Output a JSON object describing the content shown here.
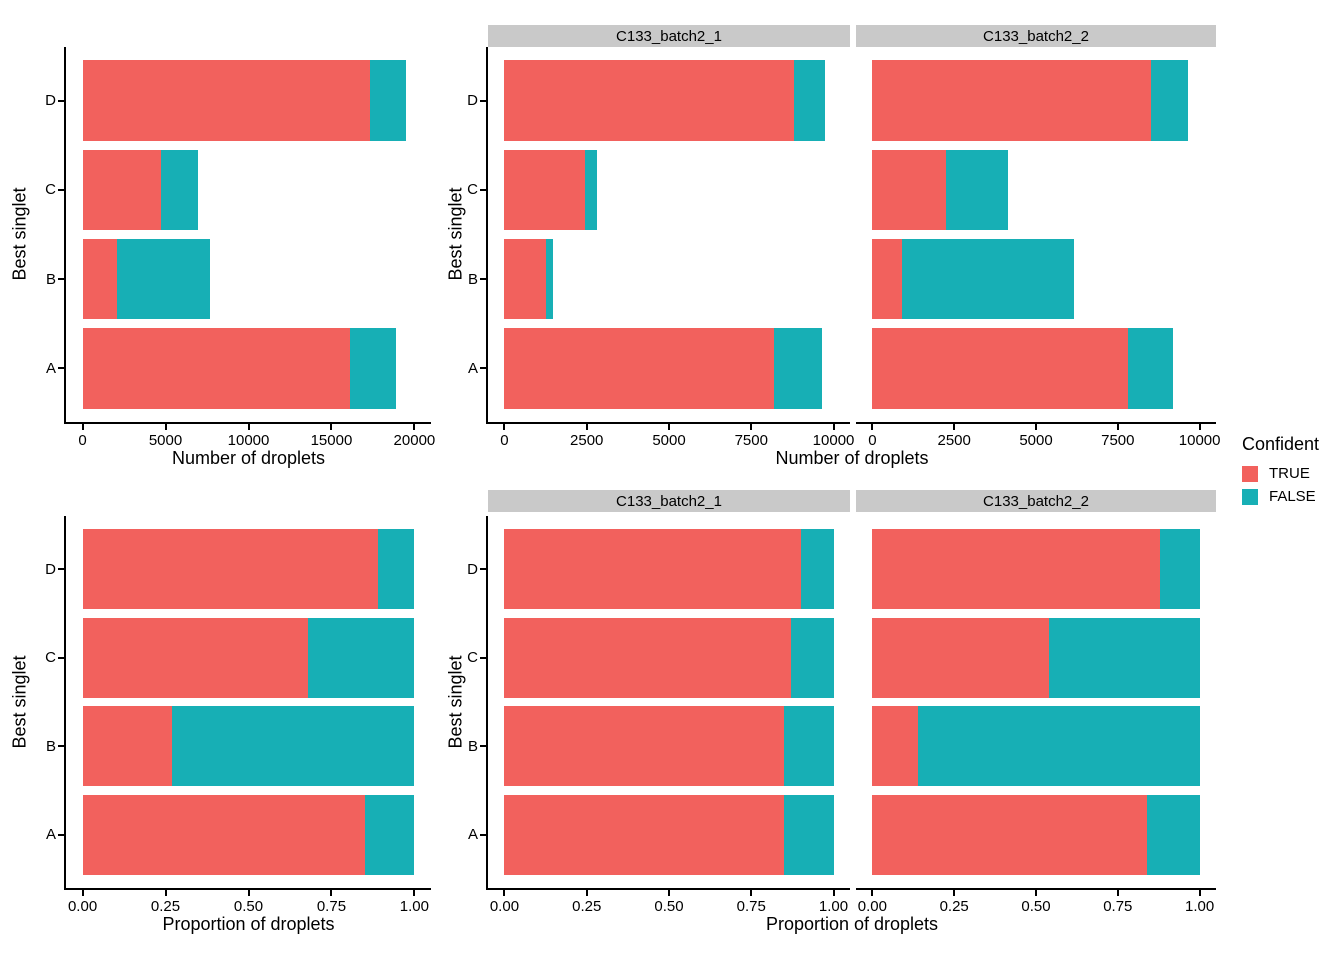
{
  "figure": {
    "background": "#FFFFFF",
    "axis_color": "#000000",
    "strip_bg": "#C9C9C9",
    "ylabel": "Best singlet",
    "xlabel_counts": "Number of droplets",
    "xlabel_props": "Proportion of droplets"
  },
  "facets": [
    "C133_batch2_1",
    "C133_batch2_2"
  ],
  "legend": {
    "title": "Confident",
    "entries": [
      {
        "label": "TRUE",
        "color": "#F2615D"
      },
      {
        "label": "FALSE",
        "color": "#17AFB5"
      }
    ]
  },
  "chart_data": [
    {
      "id": "counts-all",
      "type": "bar",
      "orientation": "horizontal",
      "stacked": true,
      "facet_label": null,
      "categories": [
        "D",
        "C",
        "B",
        "A"
      ],
      "series": [
        {
          "name": "TRUE",
          "values": [
            17300,
            4700,
            2100,
            16100
          ]
        },
        {
          "name": "FALSE",
          "values": [
            2200,
            2250,
            5600,
            2800
          ]
        }
      ],
      "xlabel": "Number of droplets",
      "ylabel": "Best singlet",
      "xticks": [
        0,
        5000,
        10000,
        15000,
        20000
      ],
      "xtick_format": "int",
      "xlim": [
        0,
        20000
      ],
      "grid": false
    },
    {
      "id": "counts-b1",
      "type": "bar",
      "orientation": "horizontal",
      "stacked": true,
      "facet_label": "C133_batch2_1",
      "categories": [
        "D",
        "C",
        "B",
        "A"
      ],
      "series": [
        {
          "name": "TRUE",
          "values": [
            8800,
            2450,
            1250,
            8200
          ]
        },
        {
          "name": "FALSE",
          "values": [
            950,
            360,
            230,
            1450
          ]
        }
      ],
      "xlabel": "Number of droplets",
      "ylabel": "Best singlet",
      "xticks": [
        0,
        2500,
        5000,
        7500,
        10000
      ],
      "xtick_format": "int",
      "xlim": [
        0,
        10000
      ],
      "grid": false
    },
    {
      "id": "counts-b2",
      "type": "bar",
      "orientation": "horizontal",
      "stacked": true,
      "facet_label": "C133_batch2_2",
      "categories": [
        "D",
        "C",
        "B",
        "A"
      ],
      "series": [
        {
          "name": "TRUE",
          "values": [
            8500,
            2250,
            900,
            7800
          ]
        },
        {
          "name": "FALSE",
          "values": [
            1150,
            1900,
            5250,
            1400
          ]
        }
      ],
      "xlabel": "Number of droplets",
      "ylabel": "Best singlet",
      "xticks": [
        0,
        2500,
        5000,
        7500,
        10000
      ],
      "xtick_format": "int",
      "xlim": [
        0,
        10000
      ],
      "grid": false
    },
    {
      "id": "props-all",
      "type": "bar",
      "orientation": "horizontal",
      "stacked": true,
      "facet_label": null,
      "categories": [
        "D",
        "C",
        "B",
        "A"
      ],
      "series": [
        {
          "name": "TRUE",
          "values": [
            0.89,
            0.68,
            0.27,
            0.85
          ]
        },
        {
          "name": "FALSE",
          "values": [
            0.11,
            0.32,
            0.73,
            0.15
          ]
        }
      ],
      "xlabel": "Proportion of droplets",
      "ylabel": "Best singlet",
      "xticks": [
        0,
        0.25,
        0.5,
        0.75,
        1
      ],
      "xtick_format": "2dp",
      "xlim": [
        0,
        1
      ],
      "grid": false
    },
    {
      "id": "props-b1",
      "type": "bar",
      "orientation": "horizontal",
      "stacked": true,
      "facet_label": "C133_batch2_1",
      "categories": [
        "D",
        "C",
        "B",
        "A"
      ],
      "series": [
        {
          "name": "TRUE",
          "values": [
            0.9,
            0.87,
            0.85,
            0.85
          ]
        },
        {
          "name": "FALSE",
          "values": [
            0.1,
            0.13,
            0.15,
            0.15
          ]
        }
      ],
      "xlabel": "Proportion of droplets",
      "ylabel": "Best singlet",
      "xticks": [
        0,
        0.25,
        0.5,
        0.75,
        1
      ],
      "xtick_format": "2dp",
      "xlim": [
        0,
        1
      ],
      "grid": false
    },
    {
      "id": "props-b2",
      "type": "bar",
      "orientation": "horizontal",
      "stacked": true,
      "facet_label": "C133_batch2_2",
      "categories": [
        "D",
        "C",
        "B",
        "A"
      ],
      "series": [
        {
          "name": "TRUE",
          "values": [
            0.88,
            0.54,
            0.14,
            0.84
          ]
        },
        {
          "name": "FALSE",
          "values": [
            0.12,
            0.46,
            0.86,
            0.16
          ]
        }
      ],
      "xlabel": "Proportion of droplets",
      "ylabel": "Best singlet",
      "xticks": [
        0,
        0.25,
        0.5,
        0.75,
        1
      ],
      "xtick_format": "2dp",
      "xlim": [
        0,
        1
      ],
      "grid": false
    }
  ]
}
